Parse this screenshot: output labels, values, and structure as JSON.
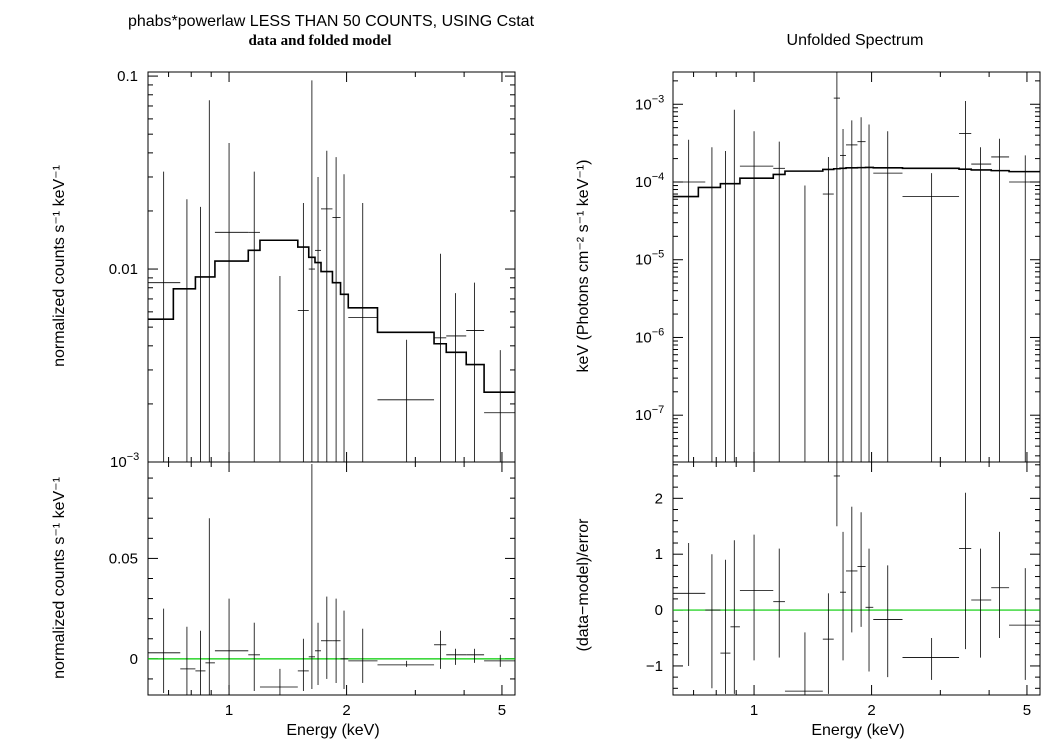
{
  "chart_data": [
    {
      "type": "scatter",
      "title": "phabs*powerlaw LESS THAN 50 COUNTS, USING Cstat",
      "subtitle": "data and folded model",
      "xlabel": "",
      "ylabel": "normalized counts s⁻¹ keV⁻¹",
      "yscale": "log",
      "xscale": "log",
      "xlim": [
        0.62,
        5.4
      ],
      "ylim": [
        0.001,
        0.105
      ],
      "yticks": [
        {
          "v": 0.1,
          "t": "0.1"
        },
        {
          "v": 0.01,
          "t": "0.01"
        },
        {
          "v": 0.001,
          "t": "10",
          "sup": "−3"
        }
      ],
      "xticks": [
        1,
        2,
        5
      ],
      "data": [
        {
          "x": 0.68,
          "xlo": 0.62,
          "xhi": 0.75,
          "y": 0.0085,
          "ylo": 0.001,
          "yhi": 0.032
        },
        {
          "x": 0.78,
          "xlo": 0.75,
          "xhi": 0.82,
          "y": 0.001,
          "ylo": 0.001,
          "yhi": 0.023
        },
        {
          "x": 0.845,
          "xlo": 0.82,
          "xhi": 0.87,
          "y": 0.001,
          "ylo": 0.001,
          "yhi": 0.021
        },
        {
          "x": 0.89,
          "xlo": 0.87,
          "xhi": 0.92,
          "y": 0.001,
          "ylo": 0.001,
          "yhi": 0.075
        },
        {
          "x": 1.0,
          "xlo": 0.92,
          "xhi": 1.12,
          "y": 0.0155,
          "ylo": 0.001,
          "yhi": 0.045
        },
        {
          "x": 1.16,
          "xlo": 1.12,
          "xhi": 1.2,
          "y": 0.0155,
          "ylo": 0.001,
          "yhi": 0.032
        },
        {
          "x": 1.35,
          "xlo": 1.2,
          "xhi": 1.5,
          "y": 0.001,
          "ylo": 0.001,
          "yhi": 0.0092
        },
        {
          "x": 1.55,
          "xlo": 1.5,
          "xhi": 1.6,
          "y": 0.0061,
          "ylo": 0.001,
          "yhi": 0.022
        },
        {
          "x": 1.63,
          "xlo": 1.6,
          "xhi": 1.66,
          "y": 0.01,
          "ylo": 0.001,
          "yhi": 0.095
        },
        {
          "x": 1.69,
          "xlo": 1.66,
          "xhi": 1.72,
          "y": 0.0125,
          "ylo": 0.001,
          "yhi": 0.03
        },
        {
          "x": 1.78,
          "xlo": 1.72,
          "xhi": 1.84,
          "y": 0.0205,
          "ylo": 0.001,
          "yhi": 0.041
        },
        {
          "x": 1.88,
          "xlo": 1.84,
          "xhi": 1.93,
          "y": 0.0185,
          "ylo": 0.001,
          "yhi": 0.038
        },
        {
          "x": 1.97,
          "xlo": 1.93,
          "xhi": 2.02,
          "y": 0.001,
          "ylo": 0.001,
          "yhi": 0.031
        },
        {
          "x": 2.2,
          "xlo": 2.02,
          "xhi": 2.4,
          "y": 0.0056,
          "ylo": 0.001,
          "yhi": 0.022
        },
        {
          "x": 2.85,
          "xlo": 2.4,
          "xhi": 3.35,
          "y": 0.0021,
          "ylo": 0.001,
          "yhi": 0.0043
        },
        {
          "x": 3.48,
          "xlo": 3.35,
          "xhi": 3.6,
          "y": 0.0044,
          "ylo": 0.001,
          "yhi": 0.012
        },
        {
          "x": 3.8,
          "xlo": 3.6,
          "xhi": 4.05,
          "y": 0.0045,
          "ylo": 0.001,
          "yhi": 0.0075
        },
        {
          "x": 4.25,
          "xlo": 4.05,
          "xhi": 4.5,
          "y": 0.0048,
          "ylo": 0.001,
          "yhi": 0.0085
        },
        {
          "x": 4.95,
          "xlo": 4.5,
          "xhi": 5.4,
          "y": 0.0018,
          "ylo": 0.001,
          "yhi": 0.0038
        }
      ],
      "model": {
        "edges": [
          0.62,
          0.72,
          0.82,
          0.92,
          1.12,
          1.2,
          1.5,
          1.6,
          1.66,
          1.72,
          1.84,
          1.93,
          2.02,
          2.4,
          3.35,
          3.6,
          4.05,
          4.5,
          5.4
        ],
        "values": [
          0.0055,
          0.0079,
          0.0091,
          0.011,
          0.0125,
          0.0141,
          0.013,
          0.0115,
          0.0108,
          0.0097,
          0.0085,
          0.0074,
          0.0063,
          0.0047,
          0.0041,
          0.0037,
          0.0032,
          0.0023
        ]
      }
    },
    {
      "type": "scatter",
      "title": "",
      "xlabel": "Energy (keV)",
      "ylabel": "normalized counts s⁻¹ keV⁻¹",
      "xscale": "log",
      "xlim": [
        0.62,
        5.4
      ],
      "ylim": [
        -0.018,
        0.098
      ],
      "yticks": [
        {
          "v": 0.05,
          "t": "0.05"
        },
        {
          "v": 0,
          "t": "0"
        }
      ],
      "xticks": [
        1,
        2,
        5
      ],
      "data": [
        {
          "x": 0.68,
          "xlo": 0.62,
          "xhi": 0.75,
          "y": 0.003,
          "ylo": -0.017,
          "yhi": 0.025
        },
        {
          "x": 0.78,
          "xlo": 0.75,
          "xhi": 0.82,
          "y": -0.005,
          "ylo": -0.018,
          "yhi": 0.016
        },
        {
          "x": 0.845,
          "xlo": 0.82,
          "xhi": 0.87,
          "y": -0.006,
          "ylo": -0.018,
          "yhi": 0.014
        },
        {
          "x": 0.89,
          "xlo": 0.87,
          "xhi": 0.92,
          "y": -0.002,
          "ylo": -0.018,
          "yhi": 0.07
        },
        {
          "x": 1.0,
          "xlo": 0.92,
          "xhi": 1.12,
          "y": 0.004,
          "ylo": -0.015,
          "yhi": 0.03
        },
        {
          "x": 1.16,
          "xlo": 1.12,
          "xhi": 1.2,
          "y": 0.002,
          "ylo": -0.016,
          "yhi": 0.018
        },
        {
          "x": 1.35,
          "xlo": 1.2,
          "xhi": 1.5,
          "y": -0.014,
          "ylo": -0.018,
          "yhi": -0.005
        },
        {
          "x": 1.55,
          "xlo": 1.5,
          "xhi": 1.6,
          "y": -0.006,
          "ylo": -0.016,
          "yhi": 0.01
        },
        {
          "x": 1.63,
          "xlo": 1.6,
          "xhi": 1.66,
          "y": 0.001,
          "ylo": -0.015,
          "yhi": 0.097
        },
        {
          "x": 1.69,
          "xlo": 1.66,
          "xhi": 1.72,
          "y": 0.004,
          "ylo": -0.013,
          "yhi": 0.018
        },
        {
          "x": 1.78,
          "xlo": 1.72,
          "xhi": 1.84,
          "y": 0.009,
          "ylo": -0.01,
          "yhi": 0.031
        },
        {
          "x": 1.88,
          "xlo": 1.84,
          "xhi": 1.93,
          "y": 0.009,
          "ylo": -0.012,
          "yhi": 0.03
        },
        {
          "x": 1.97,
          "xlo": 1.93,
          "xhi": 2.02,
          "y": 0.0,
          "ylo": -0.015,
          "yhi": 0.024
        },
        {
          "x": 2.2,
          "xlo": 2.02,
          "xhi": 2.4,
          "y": -0.001,
          "ylo": -0.012,
          "yhi": 0.015
        },
        {
          "x": 2.85,
          "xlo": 2.4,
          "xhi": 3.35,
          "y": -0.003,
          "ylo": -0.004,
          "yhi": -0.001
        },
        {
          "x": 3.48,
          "xlo": 3.35,
          "xhi": 3.6,
          "y": 0.007,
          "ylo": -0.005,
          "yhi": 0.014
        },
        {
          "x": 3.8,
          "xlo": 3.6,
          "xhi": 4.05,
          "y": 0.002,
          "ylo": -0.003,
          "yhi": 0.005
        },
        {
          "x": 4.25,
          "xlo": 4.05,
          "xhi": 4.5,
          "y": 0.002,
          "ylo": -0.002,
          "yhi": 0.005
        },
        {
          "x": 4.95,
          "xlo": 4.5,
          "xhi": 5.4,
          "y": -0.001,
          "ylo": -0.004,
          "yhi": 0.002
        }
      ],
      "reference_line": 0
    },
    {
      "type": "scatter",
      "title": "Unfolded Spectrum",
      "xlabel": "",
      "ylabel": "keV (Photons cm⁻² s⁻¹ keV⁻¹)",
      "yscale": "log",
      "xscale": "log",
      "xlim": [
        0.62,
        5.4
      ],
      "ylim": [
        2.5e-08,
        0.0026
      ],
      "yticks": [
        {
          "v": 0.001,
          "t": "10",
          "sup": "−3"
        },
        {
          "v": 0.0001,
          "t": "10",
          "sup": "−4"
        },
        {
          "v": 1e-05,
          "t": "10",
          "sup": "−5"
        },
        {
          "v": 1e-06,
          "t": "10",
          "sup": "−6"
        },
        {
          "v": 1e-07,
          "t": "10",
          "sup": "−7"
        }
      ],
      "xticks": [
        1,
        2,
        5
      ],
      "data": [
        {
          "x": 0.68,
          "xlo": 0.62,
          "xhi": 0.75,
          "y": 0.0001,
          "ylo": 2.5e-08,
          "yhi": 0.00035
        },
        {
          "x": 0.78,
          "xlo": 0.75,
          "xhi": 0.82,
          "y": 2.5e-08,
          "ylo": 2.5e-08,
          "yhi": 0.00028
        },
        {
          "x": 0.845,
          "xlo": 0.82,
          "xhi": 0.87,
          "y": 2.5e-08,
          "ylo": 2.5e-08,
          "yhi": 0.00025
        },
        {
          "x": 0.89,
          "xlo": 0.87,
          "xhi": 0.92,
          "y": 2.5e-08,
          "ylo": 2.5e-08,
          "yhi": 0.00085
        },
        {
          "x": 1.0,
          "xlo": 0.92,
          "xhi": 1.12,
          "y": 0.00016,
          "ylo": 2.5e-08,
          "yhi": 0.00045
        },
        {
          "x": 1.16,
          "xlo": 1.12,
          "xhi": 1.2,
          "y": 0.00015,
          "ylo": 2.5e-08,
          "yhi": 0.00033
        },
        {
          "x": 1.35,
          "xlo": 1.2,
          "xhi": 1.5,
          "y": 2.5e-08,
          "ylo": 2.5e-08,
          "yhi": 9e-05
        },
        {
          "x": 1.55,
          "xlo": 1.5,
          "xhi": 1.6,
          "y": 7e-05,
          "ylo": 2.5e-08,
          "yhi": 0.00021
        },
        {
          "x": 1.63,
          "xlo": 1.6,
          "xhi": 1.66,
          "y": 0.0012,
          "ylo": 2.5e-08,
          "yhi": 0.0026
        },
        {
          "x": 1.69,
          "xlo": 1.66,
          "xhi": 1.72,
          "y": 0.00022,
          "ylo": 2.5e-08,
          "yhi": 0.00048
        },
        {
          "x": 1.78,
          "xlo": 1.72,
          "xhi": 1.84,
          "y": 0.0003,
          "ylo": 2.5e-08,
          "yhi": 0.00062
        },
        {
          "x": 1.88,
          "xlo": 1.84,
          "xhi": 1.93,
          "y": 0.00033,
          "ylo": 2.5e-08,
          "yhi": 0.00068
        },
        {
          "x": 1.97,
          "xlo": 1.93,
          "xhi": 2.02,
          "y": 2.5e-08,
          "ylo": 2.5e-08,
          "yhi": 0.00055
        },
        {
          "x": 2.2,
          "xlo": 2.02,
          "xhi": 2.4,
          "y": 0.00013,
          "ylo": 2.5e-08,
          "yhi": 0.00045
        },
        {
          "x": 2.85,
          "xlo": 2.4,
          "xhi": 3.35,
          "y": 6.5e-05,
          "ylo": 2.5e-08,
          "yhi": 0.00013
        },
        {
          "x": 3.48,
          "xlo": 3.35,
          "xhi": 3.6,
          "y": 0.00042,
          "ylo": 2.5e-08,
          "yhi": 0.0011
        },
        {
          "x": 3.8,
          "xlo": 3.6,
          "xhi": 4.05,
          "y": 0.00017,
          "ylo": 2.5e-08,
          "yhi": 0.00028
        },
        {
          "x": 4.25,
          "xlo": 4.05,
          "xhi": 4.5,
          "y": 0.00021,
          "ylo": 2.5e-08,
          "yhi": 0.00036
        },
        {
          "x": 4.95,
          "xlo": 4.5,
          "xhi": 5.4,
          "y": 0.0001,
          "ylo": 2.5e-08,
          "yhi": 0.00022
        }
      ],
      "model": {
        "edges": [
          0.62,
          0.72,
          0.82,
          0.92,
          1.12,
          1.2,
          1.5,
          1.6,
          1.66,
          1.72,
          1.84,
          1.93,
          2.02,
          2.4,
          3.35,
          3.6,
          4.05,
          4.5,
          5.4
        ],
        "values": [
          6.5e-05,
          8.5e-05,
          9.5e-05,
          0.000112,
          0.000125,
          0.000138,
          0.000145,
          0.000148,
          0.00015,
          0.000152,
          0.000153,
          0.000154,
          0.000152,
          0.00015,
          0.000146,
          0.000143,
          0.00014,
          0.000136
        ]
      }
    },
    {
      "type": "scatter",
      "title": "",
      "xlabel": "Energy (keV)",
      "ylabel": "(data−model)/error",
      "xscale": "log",
      "xlim": [
        0.62,
        5.4
      ],
      "ylim": [
        -1.52,
        2.65
      ],
      "yticks": [
        {
          "v": 2,
          "t": "2"
        },
        {
          "v": 1,
          "t": "1"
        },
        {
          "v": 0,
          "t": "0"
        },
        {
          "v": -1,
          "t": "−1"
        }
      ],
      "xticks": [
        1,
        2,
        5
      ],
      "data": [
        {
          "x": 0.68,
          "xlo": 0.62,
          "xhi": 0.75,
          "y": 0.3,
          "ylo": -1.0,
          "yhi": 1.2
        },
        {
          "x": 0.78,
          "xlo": 0.75,
          "xhi": 0.82,
          "y": 0.0,
          "ylo": -1.4,
          "yhi": 1.0
        },
        {
          "x": 0.845,
          "xlo": 0.82,
          "xhi": 0.87,
          "y": -0.77,
          "ylo": -1.5,
          "yhi": 0.9
        },
        {
          "x": 0.89,
          "xlo": 0.87,
          "xhi": 0.92,
          "y": -0.3,
          "ylo": -1.5,
          "yhi": 1.25
        },
        {
          "x": 1.0,
          "xlo": 0.92,
          "xhi": 1.12,
          "y": 0.35,
          "ylo": -0.9,
          "yhi": 1.35
        },
        {
          "x": 1.16,
          "xlo": 1.12,
          "xhi": 1.2,
          "y": 0.15,
          "ylo": -0.85,
          "yhi": 1.1
        },
        {
          "x": 1.35,
          "xlo": 1.2,
          "xhi": 1.5,
          "y": -1.45,
          "ylo": -1.52,
          "yhi": -0.4
        },
        {
          "x": 1.55,
          "xlo": 1.5,
          "xhi": 1.6,
          "y": -0.52,
          "ylo": -1.5,
          "yhi": 0.3
        },
        {
          "x": 1.63,
          "xlo": 1.6,
          "xhi": 1.66,
          "y": 2.4,
          "ylo": 1.5,
          "yhi": 2.65
        },
        {
          "x": 1.69,
          "xlo": 1.66,
          "xhi": 1.72,
          "y": 0.32,
          "ylo": -0.9,
          "yhi": 1.4
        },
        {
          "x": 1.78,
          "xlo": 1.72,
          "xhi": 1.84,
          "y": 0.7,
          "ylo": -0.4,
          "yhi": 1.85
        },
        {
          "x": 1.88,
          "xlo": 1.84,
          "xhi": 1.93,
          "y": 0.78,
          "ylo": -0.3,
          "yhi": 1.75
        },
        {
          "x": 1.97,
          "xlo": 1.93,
          "xhi": 2.02,
          "y": 0.05,
          "ylo": -1.1,
          "yhi": 1.1
        },
        {
          "x": 2.2,
          "xlo": 2.02,
          "xhi": 2.4,
          "y": -0.17,
          "ylo": -1.2,
          "yhi": 0.8
        },
        {
          "x": 2.85,
          "xlo": 2.4,
          "xhi": 3.35,
          "y": -0.85,
          "ylo": -1.25,
          "yhi": -0.5
        },
        {
          "x": 3.48,
          "xlo": 3.35,
          "xhi": 3.6,
          "y": 1.1,
          "ylo": -0.7,
          "yhi": 2.1
        },
        {
          "x": 3.8,
          "xlo": 3.6,
          "xhi": 4.05,
          "y": 0.18,
          "ylo": -0.85,
          "yhi": 1.1
        },
        {
          "x": 4.25,
          "xlo": 4.05,
          "xhi": 4.5,
          "y": 0.4,
          "ylo": -0.5,
          "yhi": 1.4
        },
        {
          "x": 4.95,
          "xlo": 4.5,
          "xhi": 5.4,
          "y": -0.27,
          "ylo": -1.25,
          "yhi": 0.75
        }
      ],
      "reference_line": 0
    }
  ],
  "colors": {
    "data": "#000000",
    "model": "#000000",
    "reference_line": "#00cc00",
    "frame": "#000000"
  }
}
